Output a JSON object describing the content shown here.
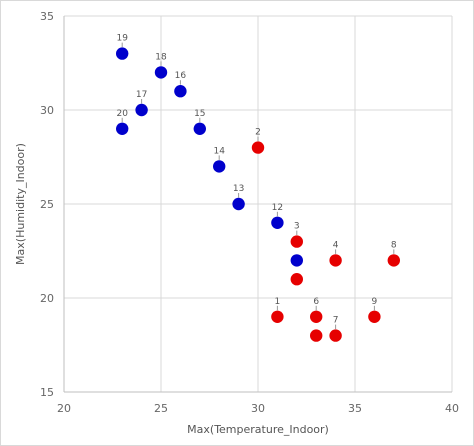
{
  "chart_data": {
    "type": "scatter",
    "title": "",
    "xlabel": "Max(Temperature_Indoor)",
    "ylabel": "Max(Humidity_Indoor)",
    "xlim": [
      20,
      40
    ],
    "ylim": [
      15,
      35
    ],
    "x_ticks": [
      "20",
      "25",
      "30",
      "35",
      "40"
    ],
    "y_ticks": [
      "15",
      "20",
      "25",
      "30",
      "35"
    ],
    "grid": true,
    "colors": {
      "blue": "#0000cc",
      "red": "#e60000"
    },
    "points": [
      {
        "label": "19",
        "x": 23,
        "y": 33,
        "color": "blue"
      },
      {
        "label": "18",
        "x": 25,
        "y": 32,
        "color": "blue"
      },
      {
        "label": "16",
        "x": 26,
        "y": 31,
        "color": "blue"
      },
      {
        "label": "17",
        "x": 24,
        "y": 30,
        "color": "blue"
      },
      {
        "label": "20",
        "x": 23,
        "y": 29,
        "color": "blue"
      },
      {
        "label": "15",
        "x": 27,
        "y": 29,
        "color": "blue"
      },
      {
        "label": "14",
        "x": 28,
        "y": 27,
        "color": "blue"
      },
      {
        "label": "13",
        "x": 29,
        "y": 25,
        "color": "blue"
      },
      {
        "label": "12",
        "x": 31,
        "y": 24,
        "color": "blue"
      },
      {
        "label": "",
        "x": 32,
        "y": 22,
        "color": "blue"
      },
      {
        "label": "2",
        "x": 30,
        "y": 28,
        "color": "red"
      },
      {
        "label": "3",
        "x": 32,
        "y": 23,
        "color": "red"
      },
      {
        "label": "",
        "x": 32,
        "y": 21,
        "color": "red"
      },
      {
        "label": "4",
        "x": 34,
        "y": 22,
        "color": "red"
      },
      {
        "label": "8",
        "x": 37,
        "y": 22,
        "color": "red"
      },
      {
        "label": "1",
        "x": 31,
        "y": 19,
        "color": "red"
      },
      {
        "label": "6",
        "x": 33,
        "y": 19,
        "color": "red"
      },
      {
        "label": "9",
        "x": 36,
        "y": 19,
        "color": "red"
      },
      {
        "label": "",
        "x": 33,
        "y": 18,
        "color": "red"
      },
      {
        "label": "7",
        "x": 34,
        "y": 18,
        "color": "red"
      }
    ]
  }
}
